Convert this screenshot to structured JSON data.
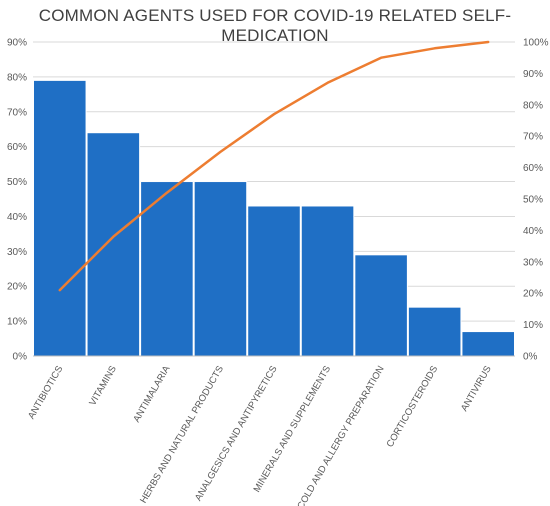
{
  "chart_data": {
    "type": "bar",
    "title": "COMMON AGENTS USED FOR COVID-19 RELATED SELF-MEDICATION",
    "categories": [
      "ANTIBIOTICS",
      "VITAMINS",
      "ANTIMALARIA",
      "HERBS AND NATURAL PRODUCTS",
      "ANALGESICS AND ANTIPYRETICS",
      "MINERALS AND SUPPLEMENTS",
      "COLD AND ALLERGY PREPARATION",
      "CORTICOSTEROIDS",
      "ANTIVIRUS"
    ],
    "series": [
      {
        "type": "bar",
        "values": [
          79,
          64,
          50,
          50,
          43,
          43,
          29,
          14,
          7
        ],
        "color": "#1F6FC5"
      },
      {
        "type": "line",
        "axis": "right",
        "values": [
          21,
          38,
          52,
          65,
          77,
          87,
          95,
          98,
          100
        ],
        "color": "#ED7D31"
      }
    ],
    "ylim": [
      0,
      90
    ],
    "y_ticks": [
      "0%",
      "10%",
      "20%",
      "30%",
      "40%",
      "50%",
      "60%",
      "70%",
      "80%",
      "90%"
    ],
    "y2lim": [
      0,
      100
    ],
    "y2_ticks": [
      "0%",
      "10%",
      "20%",
      "30%",
      "40%",
      "50%",
      "60%",
      "70%",
      "80%",
      "90%",
      "100%"
    ],
    "xlabel": "",
    "ylabel": "",
    "grid": true,
    "legend": "none"
  }
}
